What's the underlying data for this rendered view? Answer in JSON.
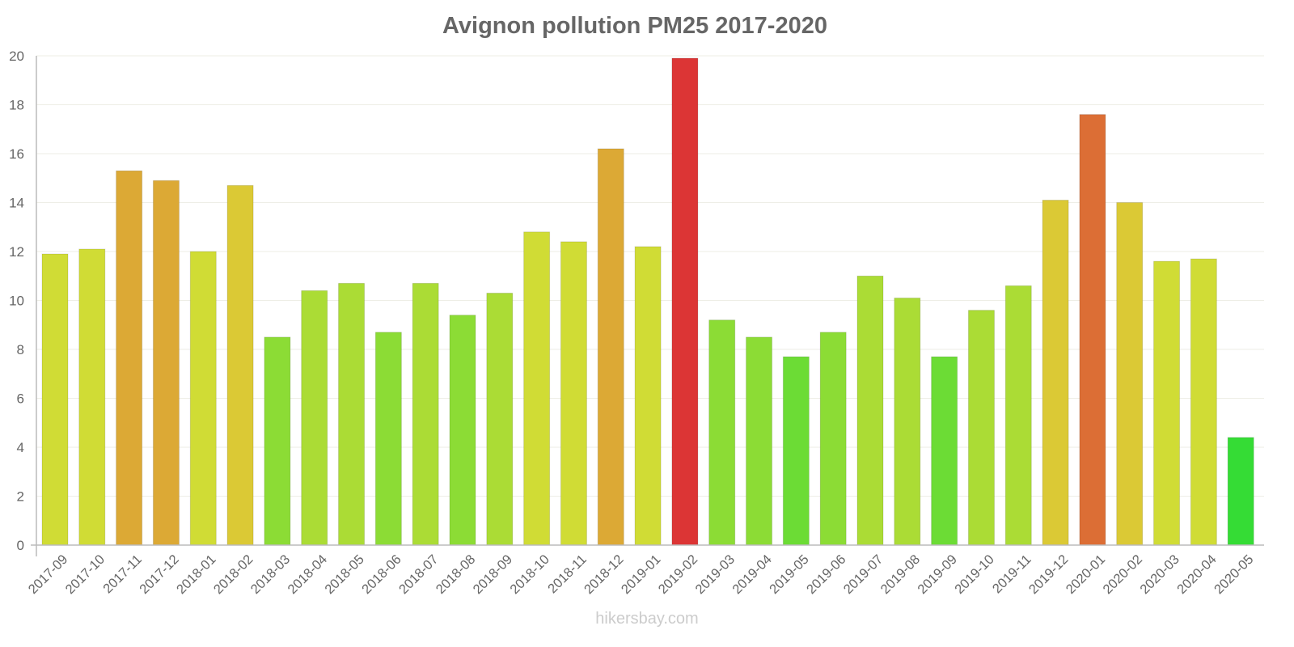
{
  "chart_data": {
    "type": "bar",
    "title": "Avignon pollution PM25 2017-2020",
    "xlabel": "",
    "ylabel": "",
    "ylim": [
      0,
      20
    ],
    "yticks": [
      0,
      2,
      4,
      6,
      8,
      10,
      12,
      14,
      16,
      18,
      20
    ],
    "grid": true,
    "legend": null,
    "categories": [
      "2017-09",
      "2017-10",
      "2017-11",
      "2017-12",
      "2018-01",
      "2018-02",
      "2018-03",
      "2018-04",
      "2018-05",
      "2018-06",
      "2018-07",
      "2018-08",
      "2018-09",
      "2018-10",
      "2018-11",
      "2018-12",
      "2019-01",
      "2019-02",
      "2019-03",
      "2019-04",
      "2019-05",
      "2019-06",
      "2019-07",
      "2019-08",
      "2019-09",
      "2019-10",
      "2019-11",
      "2019-12",
      "2020-01",
      "2020-02",
      "2020-03",
      "2020-04",
      "2020-05"
    ],
    "values": [
      11.9,
      12.1,
      15.3,
      14.9,
      12.0,
      14.7,
      8.5,
      10.4,
      10.7,
      8.7,
      10.7,
      9.4,
      10.3,
      12.8,
      12.4,
      16.2,
      12.2,
      19.9,
      9.2,
      8.5,
      7.7,
      8.7,
      11.0,
      10.1,
      7.7,
      9.6,
      10.6,
      14.1,
      17.6,
      14.0,
      11.6,
      11.7,
      4.4
    ],
    "colors": [
      "#d0dc35",
      "#d0dc35",
      "#dca935",
      "#dca935",
      "#d0dc35",
      "#dbc935",
      "#8cdc35",
      "#abdc35",
      "#abdc35",
      "#8cdc35",
      "#abdc35",
      "#8cdc35",
      "#abdc35",
      "#d0dc35",
      "#d0dc35",
      "#dca935",
      "#d0dc35",
      "#dc3535",
      "#8cdc35",
      "#8cdc35",
      "#6cdc35",
      "#8cdc35",
      "#abdc35",
      "#abdc35",
      "#6cdc35",
      "#abdc35",
      "#abdc35",
      "#dbc935",
      "#dc6e35",
      "#dbc935",
      "#d0dc35",
      "#d0dc35",
      "#35dc35"
    ]
  },
  "watermark": "hikersbay.com"
}
